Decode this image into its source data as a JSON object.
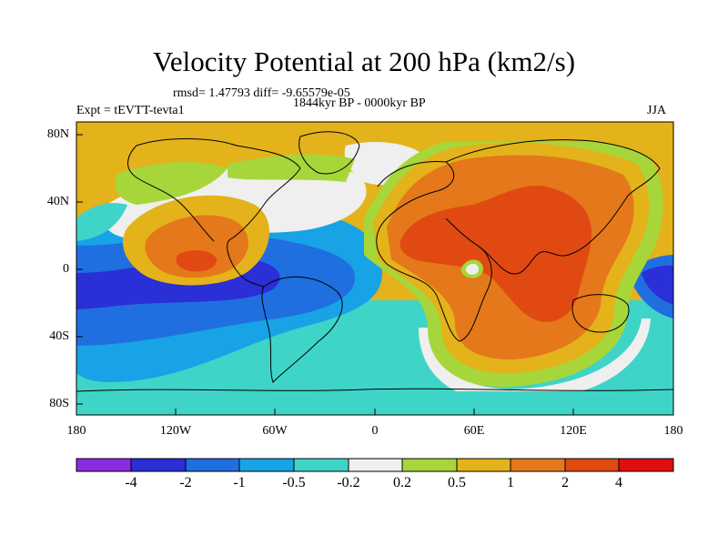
{
  "title": "Velocity Potential at 200 hPa (km2/s)",
  "stats": "rmsd= 1.47793 diff= -9.65579e-05",
  "experiment": "Expt = tEVTT-tevta1",
  "period": "1844kyr BP - 0000kyr BP",
  "season": "JJA",
  "map": {
    "lat_ticks": [
      "80N",
      "40N",
      "0",
      "40S",
      "80S"
    ],
    "lon_ticks": [
      "180",
      "120W",
      "60W",
      "0",
      "60E",
      "120E",
      "180"
    ]
  },
  "colorbar": {
    "labels": [
      "-4",
      "-2",
      "-1",
      "-0.5",
      "-0.2",
      "0.2",
      "0.5",
      "1",
      "2",
      "4"
    ],
    "colors": [
      "#8a2be2",
      "#2a2fd6",
      "#1f6fe0",
      "#17a3e6",
      "#3fd4c8",
      "#efefef",
      "#a7d63a",
      "#e4b21a",
      "#e4781a",
      "#e04a12",
      "#e00f0f"
    ]
  }
}
